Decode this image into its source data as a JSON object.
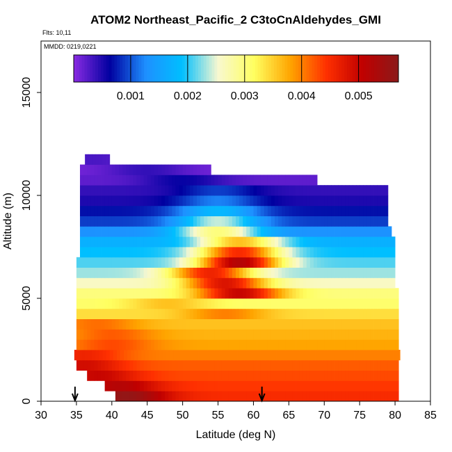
{
  "chart_data": {
    "type": "heatmap",
    "title": "ATOM2 Northeast_Pacific_2 C3toCnAldehydes_GMI",
    "flights_label": "Flts: 10,11",
    "date_label": "MMDD: 0219,0221",
    "xlabel": "Latitude (deg N)",
    "ylabel": "Altitude (m)",
    "xlim": [
      30,
      85
    ],
    "ylim": [
      0,
      17500
    ],
    "x_ticks": [
      30,
      35,
      40,
      45,
      50,
      55,
      60,
      65,
      70,
      75,
      80,
      85
    ],
    "y_ticks": [
      0,
      5000,
      10000,
      15000
    ],
    "colorbar": {
      "range": [
        0,
        0.0057
      ],
      "ticks": [
        0.001,
        0.002,
        0.003,
        0.004,
        0.005
      ],
      "tick_labels": [
        "0.001",
        "0.002",
        "0.003",
        "0.004",
        "0.005"
      ],
      "colors": [
        "#8a2be2",
        "#0000a0",
        "#1e90ff",
        "#00bfff",
        "#f8f8d0",
        "#ffff60",
        "#ffa500",
        "#ff3000",
        "#c00000",
        "#8b1a1a"
      ]
    },
    "arrows_at_latitude": [
      34.8,
      61.2
    ],
    "layers": [
      {
        "alt": 0,
        "x": [
          40.5,
          80.5
        ],
        "peak": [
          42,
          0.0056
        ],
        "base": 0.0045
      },
      {
        "alt": 500,
        "x": [
          39,
          80.5
        ],
        "peak": [
          41,
          0.0052
        ],
        "base": 0.0044
      },
      {
        "alt": 1000,
        "x": [
          36.5,
          80.5
        ],
        "peak": [
          38,
          0.005
        ],
        "base": 0.0043
      },
      {
        "alt": 1500,
        "x": [
          35,
          80.5
        ],
        "peak": [
          36,
          0.0049
        ],
        "base": 0.0042
      },
      {
        "alt": 2000,
        "x": [
          34.7,
          80.5
        ],
        "peak": [
          36,
          0.0046
        ],
        "base": 0.004
      },
      {
        "alt": 2500,
        "x": [
          35,
          80.5
        ],
        "peak": [
          40,
          0.0043
        ],
        "base": 0.0038
      },
      {
        "alt": 3000,
        "x": [
          35,
          80.5
        ],
        "peak": [
          40,
          0.0042
        ],
        "base": 0.0037
      },
      {
        "alt": 3500,
        "x": [
          35,
          80.5
        ],
        "peak": [
          38,
          0.0041
        ],
        "base": 0.0036
      },
      {
        "alt": 4000,
        "x": [
          35,
          80.5
        ],
        "peak": [
          56,
          0.004
        ],
        "base": 0.0034
      },
      {
        "alt": 4500,
        "x": [
          35,
          80.5
        ],
        "peak": [
          48,
          0.0036
        ],
        "base": 0.0031
      },
      {
        "alt": 5000,
        "x": [
          35,
          80.5
        ],
        "peak": [
          58,
          0.005
        ],
        "base": 0.003
      },
      {
        "alt": 5500,
        "x": [
          35,
          80
        ],
        "peak": [
          56,
          0.0048
        ],
        "base": 0.0026
      },
      {
        "alt": 6000,
        "x": [
          35,
          80
        ],
        "peak": [
          54,
          0.0046
        ],
        "base": 0.0023
      },
      {
        "alt": 6500,
        "x": [
          35,
          80
        ],
        "peak": [
          58,
          0.0052
        ],
        "base": 0.0021
      },
      {
        "alt": 7000,
        "x": [
          35.5,
          80
        ],
        "peak": [
          58,
          0.0045
        ],
        "base": 0.0019
      },
      {
        "alt": 7500,
        "x": [
          35.5,
          80
        ],
        "peak": [
          58,
          0.0036
        ],
        "base": 0.0017
      },
      {
        "alt": 8000,
        "x": [
          35.5,
          79.5
        ],
        "peak": [
          55,
          0.003
        ],
        "base": 0.0013
      },
      {
        "alt": 8500,
        "x": [
          35.5,
          79
        ],
        "peak": [
          55,
          0.0024
        ],
        "base": 0.0009
      },
      {
        "alt": 9000,
        "x": [
          35.5,
          79
        ],
        "peak": [
          55,
          0.0018
        ],
        "base": 0.0007
      },
      {
        "alt": 9500,
        "x": [
          35.5,
          79
        ],
        "peak": [
          55,
          0.0012
        ],
        "base": 0.0005
      },
      {
        "alt": 10000,
        "x": [
          35.5,
          79
        ],
        "peak": [
          55,
          0.0009
        ],
        "base": 0.0004
      },
      {
        "alt": 10500,
        "x": [
          35.5,
          69
        ],
        "peak": [
          50,
          0.0006
        ],
        "base": 0.0002
      },
      {
        "alt": 11000,
        "x": [
          35.5,
          54
        ],
        "peak": [
          45,
          0.0004
        ],
        "base": 0.0001
      },
      {
        "alt": 11500,
        "x": [
          36.2,
          39.5
        ],
        "peak": [
          37,
          0.0003
        ],
        "base": 0.0001
      }
    ]
  }
}
